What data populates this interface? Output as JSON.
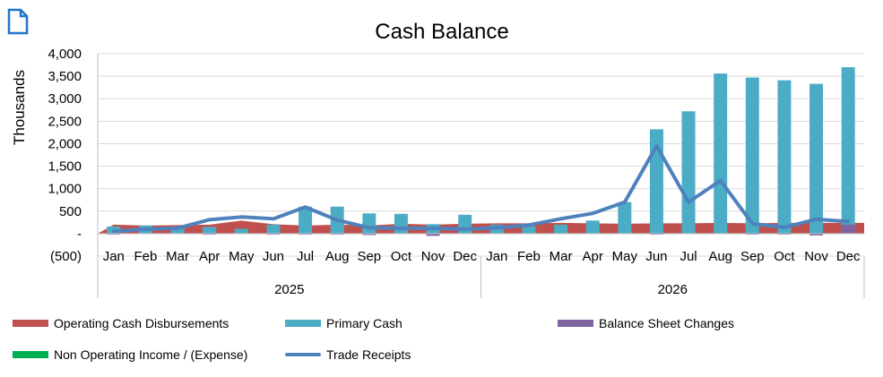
{
  "chart_data": {
    "type": "bar",
    "title": "Cash Balance",
    "ylabel": "Thousands",
    "ylim": [
      -500,
      4000
    ],
    "yticks": [
      -500,
      0,
      500,
      1000,
      1500,
      2000,
      2500,
      3000,
      3500,
      4000
    ],
    "ytick_labels": [
      "(500)",
      "-",
      "500",
      "1,000",
      "1,500",
      "2,000",
      "2,500",
      "3,000",
      "3,500",
      "4,000"
    ],
    "grid": true,
    "legend_position": "bottom",
    "categories": [
      "Jan",
      "Feb",
      "Mar",
      "Apr",
      "May",
      "Jun",
      "Jul",
      "Aug",
      "Sep",
      "Oct",
      "Nov",
      "Dec",
      "Jan",
      "Feb",
      "Mar",
      "Apr",
      "May",
      "Jun",
      "Jul",
      "Aug",
      "Sep",
      "Oct",
      "Nov",
      "Dec"
    ],
    "groups": [
      {
        "label": "2025",
        "count": 12
      },
      {
        "label": "2026",
        "count": 12
      }
    ],
    "series": [
      {
        "name": "Operating Cash Disbursements",
        "type": "area",
        "color": "#c0504d",
        "values": [
          200,
          180,
          190,
          200,
          290,
          210,
          180,
          200,
          180,
          220,
          200,
          220,
          230,
          230,
          240,
          230,
          220,
          230,
          230,
          240,
          230,
          240,
          240,
          240
        ]
      },
      {
        "name": "Primary Cash",
        "type": "bar",
        "color": "#4bacc6",
        "values": [
          160,
          180,
          150,
          150,
          110,
          200,
          600,
          600,
          450,
          440,
          210,
          420,
          200,
          160,
          200,
          290,
          700,
          2320,
          2720,
          3560,
          3470,
          3410,
          3330,
          3700
        ]
      },
      {
        "name": "Balance Sheet Changes",
        "type": "bar",
        "color": "#8064a2",
        "values": [
          -20,
          0,
          0,
          -20,
          0,
          -20,
          -20,
          -20,
          -30,
          0,
          -50,
          0,
          0,
          0,
          0,
          0,
          0,
          -20,
          0,
          0,
          -20,
          -20,
          -40,
          200
        ]
      },
      {
        "name": "Non Operating Income / (Expense)",
        "type": "bar",
        "color": "#00b050",
        "values": [
          0,
          0,
          0,
          0,
          0,
          0,
          0,
          0,
          0,
          0,
          0,
          0,
          0,
          0,
          0,
          0,
          0,
          0,
          0,
          0,
          0,
          0,
          0,
          0
        ]
      },
      {
        "name": "Trade Receipts",
        "type": "line",
        "color": "#4f81bd",
        "values": [
          50,
          100,
          120,
          310,
          370,
          330,
          590,
          300,
          130,
          120,
          120,
          100,
          130,
          190,
          330,
          450,
          700,
          1950,
          700,
          1180,
          220,
          140,
          320,
          270
        ]
      }
    ]
  }
}
